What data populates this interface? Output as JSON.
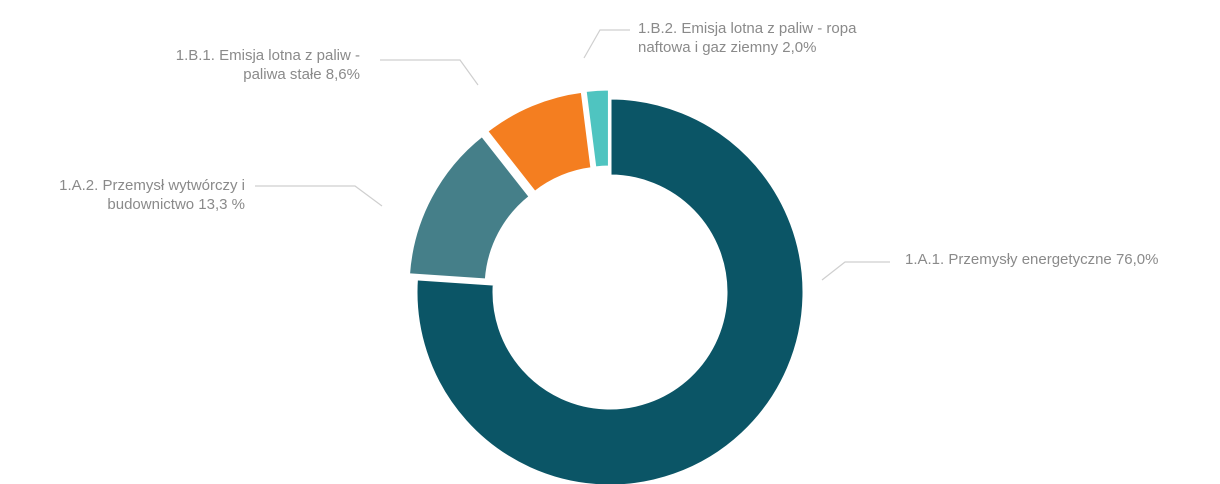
{
  "chart_data": {
    "type": "pie",
    "categories": [
      "1.A.1. Przemysły energetyczne",
      "1.A.2. Przemysł wytwórczy i budownictwo",
      "1.B.1. Emisja lotna z paliw - paliwa stałe",
      "1.B.2. Emisja lotna z paliw - ropa naftowa i gaz ziemny"
    ],
    "values": [
      76.0,
      13.3,
      8.6,
      2.0
    ],
    "value_labels": [
      "76,0%",
      "13,3 %",
      "8,6%",
      "2,0%"
    ],
    "colors": [
      "#0b5566",
      "#457f89",
      "#f47e20",
      "#4fc4c0"
    ],
    "donut": true
  }
}
